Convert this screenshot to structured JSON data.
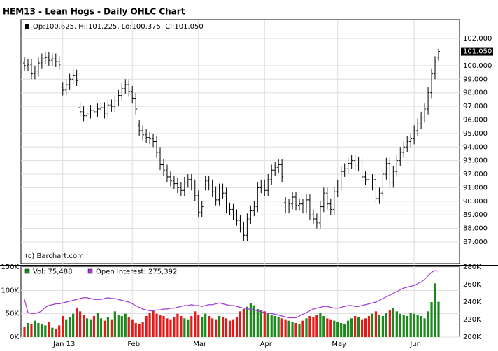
{
  "chart_data": [
    {
      "type": "ohlc",
      "title": "HEM13 - Lean Hogs - Daily OHLC Chart",
      "legend_text": "Op:100.625, Hi:101.225, Lo:100.375, Cl:101.050",
      "watermark": "(c) Barchart.com",
      "last_price_label": "101.050",
      "color": "#000000",
      "grid": true,
      "categories": [
        null,
        null,
        null,
        null,
        null,
        null,
        null,
        null,
        null,
        null,
        null,
        "Jan 13",
        null,
        null,
        null,
        null,
        null,
        null,
        null,
        null,
        null,
        null,
        null,
        null,
        null,
        null,
        null,
        null,
        null,
        null,
        null,
        "Feb",
        null,
        null,
        null,
        null,
        null,
        null,
        null,
        null,
        null,
        null,
        null,
        null,
        null,
        null,
        null,
        null,
        null,
        null,
        "Mar",
        null,
        null,
        null,
        null,
        null,
        null,
        null,
        null,
        null,
        null,
        null,
        null,
        null,
        null,
        null,
        null,
        null,
        null,
        "Apr",
        null,
        null,
        null,
        null,
        null,
        null,
        null,
        null,
        null,
        null,
        null,
        null,
        null,
        null,
        null,
        null,
        null,
        null,
        null,
        null,
        "May",
        null,
        null,
        null,
        null,
        null,
        null,
        null,
        null,
        null,
        null,
        null,
        null,
        null,
        null,
        null,
        null,
        null,
        null,
        null,
        null,
        null,
        "Jun",
        null,
        null,
        null,
        null,
        null,
        null,
        null
      ],
      "open": [
        100.2,
        100.0,
        100.1,
        99.4,
        99.6,
        100.2,
        100.5,
        100.6,
        100.4,
        100.5,
        100.3,
        98.4,
        98.2,
        98.6,
        99.0,
        99.3,
        96.9,
        96.6,
        96.3,
        96.5,
        96.7,
        96.6,
        96.8,
        96.9,
        96.5,
        97.1,
        97.0,
        97.4,
        97.8,
        98.3,
        98.6,
        98.1,
        97.6,
        95.6,
        95.2,
        94.9,
        94.7,
        94.6,
        94.4,
        93.6,
        92.7,
        92.3,
        91.8,
        91.5,
        91.3,
        91.0,
        90.8,
        91.4,
        91.6,
        91.2,
        90.4,
        89.2,
        91.2,
        91.5,
        91.2,
        90.7,
        90.1,
        90.9,
        90.6,
        89.5,
        89.4,
        89.0,
        88.6,
        88.1,
        87.5,
        88.7,
        89.3,
        89.6,
        91.0,
        91.2,
        90.8,
        91.6,
        92.3,
        92.5,
        92.7,
        89.9,
        89.5,
        89.8,
        90.3,
        89.7,
        89.8,
        89.5,
        90.1,
        89.0,
        88.7,
        88.4,
        89.6,
        90.6,
        89.8,
        89.4,
        90.7,
        91.2,
        92.2,
        92.4,
        92.8,
        93.0,
        92.6,
        92.9,
        91.8,
        91.6,
        91.2,
        91.6,
        90.2,
        90.6,
        92.0,
        92.8,
        91.4,
        92.2,
        93.0,
        93.6,
        94.0,
        94.4,
        94.6,
        95.2,
        95.7,
        96.2,
        96.8,
        98.0,
        99.4,
        100.625
      ],
      "high": [
        100.6,
        100.5,
        100.5,
        100.0,
        100.6,
        100.9,
        101.0,
        101.0,
        100.9,
        100.9,
        100.7,
        98.8,
        99.0,
        99.4,
        99.7,
        99.7,
        97.3,
        97.0,
        96.9,
        97.1,
        97.1,
        97.2,
        97.3,
        97.3,
        97.5,
        97.5,
        97.8,
        98.2,
        98.7,
        99.0,
        99.0,
        98.5,
        98.0,
        96.0,
        95.6,
        95.3,
        95.1,
        95.0,
        94.8,
        94.0,
        93.1,
        92.7,
        92.2,
        91.9,
        91.7,
        91.4,
        91.8,
        92.0,
        92.0,
        91.6,
        90.8,
        90.0,
        91.9,
        91.9,
        91.6,
        91.1,
        91.3,
        91.3,
        91.0,
        89.9,
        89.8,
        89.4,
        89.0,
        88.5,
        89.1,
        89.7,
        90.0,
        91.4,
        91.6,
        91.6,
        92.0,
        92.7,
        92.9,
        93.1,
        93.1,
        90.3,
        90.2,
        90.7,
        90.7,
        90.2,
        90.2,
        90.5,
        90.5,
        89.4,
        89.1,
        90.0,
        91.0,
        91.0,
        90.2,
        91.1,
        91.6,
        92.6,
        92.8,
        93.2,
        93.4,
        93.4,
        93.3,
        93.3,
        92.2,
        92.0,
        92.0,
        92.0,
        91.0,
        92.4,
        93.2,
        93.2,
        92.6,
        93.4,
        94.0,
        94.4,
        94.8,
        95.0,
        95.6,
        96.1,
        96.6,
        97.2,
        98.4,
        99.8,
        100.7,
        101.225
      ],
      "low": [
        99.6,
        99.6,
        99.0,
        99.0,
        99.2,
        99.8,
        100.1,
        100.0,
        100.0,
        99.9,
        99.7,
        97.8,
        97.8,
        98.2,
        98.6,
        98.5,
        96.2,
        95.9,
        95.9,
        96.1,
        96.2,
        96.2,
        96.4,
        96.1,
        96.1,
        96.6,
        96.6,
        97.0,
        97.4,
        97.9,
        97.7,
        97.2,
        96.4,
        94.8,
        94.5,
        94.3,
        94.2,
        94.0,
        93.2,
        92.3,
        91.9,
        91.4,
        91.1,
        90.9,
        90.6,
        90.4,
        90.4,
        91.0,
        90.8,
        90.0,
        88.8,
        88.8,
        90.8,
        90.8,
        90.3,
        89.7,
        89.7,
        90.2,
        89.1,
        89.0,
        88.6,
        88.2,
        87.7,
        87.1,
        87.1,
        88.3,
        88.9,
        89.2,
        90.6,
        90.4,
        90.4,
        91.2,
        91.9,
        92.1,
        91.4,
        89.1,
        89.1,
        89.4,
        89.3,
        89.3,
        89.1,
        89.1,
        88.6,
        88.3,
        88.0,
        88.0,
        89.2,
        89.4,
        89.0,
        89.0,
        90.3,
        90.8,
        91.8,
        92.0,
        92.4,
        92.2,
        92.2,
        91.4,
        91.2,
        90.8,
        90.8,
        89.8,
        89.8,
        90.2,
        91.6,
        91.0,
        91.0,
        91.8,
        92.6,
        93.2,
        93.6,
        94.0,
        94.2,
        94.8,
        95.3,
        95.8,
        96.4,
        97.6,
        99.0,
        100.375
      ],
      "close": [
        100.0,
        100.1,
        99.4,
        99.6,
        100.2,
        100.5,
        100.6,
        100.4,
        100.5,
        100.3,
        100.1,
        98.2,
        98.6,
        99.0,
        99.3,
        98.9,
        96.6,
        96.3,
        96.5,
        96.7,
        96.6,
        96.8,
        96.9,
        96.5,
        97.1,
        97.0,
        97.4,
        97.8,
        98.3,
        98.6,
        98.1,
        97.6,
        96.8,
        95.2,
        94.9,
        94.7,
        94.6,
        94.4,
        93.6,
        92.7,
        92.3,
        91.8,
        91.5,
        91.3,
        91.0,
        90.8,
        91.4,
        91.6,
        91.2,
        90.4,
        89.2,
        89.6,
        91.5,
        91.2,
        90.7,
        90.1,
        90.9,
        90.6,
        89.5,
        89.4,
        89.0,
        88.6,
        88.1,
        87.5,
        88.7,
        89.3,
        89.6,
        91.0,
        91.2,
        90.8,
        91.6,
        92.3,
        92.5,
        92.7,
        91.8,
        89.5,
        89.8,
        90.3,
        89.7,
        89.8,
        89.5,
        90.1,
        89.0,
        88.7,
        88.4,
        89.6,
        90.6,
        89.8,
        89.4,
        90.7,
        91.2,
        92.2,
        92.4,
        92.8,
        93.0,
        92.6,
        92.9,
        91.8,
        91.6,
        91.2,
        91.6,
        90.2,
        90.6,
        92.0,
        92.8,
        91.4,
        92.2,
        93.0,
        93.6,
        94.0,
        94.4,
        94.6,
        95.2,
        95.7,
        96.2,
        96.8,
        98.0,
        99.4,
        100.3,
        101.05
      ],
      "ylim": [
        85.4,
        103.4
      ],
      "yticks": [
        {
          "value": 87,
          "label": "87.000"
        },
        {
          "value": 88,
          "label": "88.000"
        },
        {
          "value": 89,
          "label": "89.000"
        },
        {
          "value": 90,
          "label": "90.000"
        },
        {
          "value": 91,
          "label": "91.000"
        },
        {
          "value": 92,
          "label": "92.000"
        },
        {
          "value": 93,
          "label": "93.000"
        },
        {
          "value": 94,
          "label": "94.000"
        },
        {
          "value": 95,
          "label": "95.000"
        },
        {
          "value": 96,
          "label": "96.000"
        },
        {
          "value": 97,
          "label": "97.000"
        },
        {
          "value": 98,
          "label": "98.000"
        },
        {
          "value": 99,
          "label": "99.000"
        },
        {
          "value": 100,
          "label": "100.000"
        },
        {
          "value": 101,
          "label": "101.000"
        },
        {
          "value": 102,
          "label": "102.000"
        }
      ]
    },
    {
      "type": "volume",
      "grid": true,
      "series": [
        {
          "name": "Vol: 75,488",
          "color": "#1a8a1a",
          "up_color": "#1a8a1a",
          "down_color": "#e31a1a",
          "values": [
            22000,
            30000,
            28000,
            35000,
            30000,
            28000,
            25000,
            32000,
            20000,
            18000,
            25000,
            45000,
            38000,
            42000,
            50000,
            62000,
            55000,
            48000,
            40000,
            38000,
            45000,
            52000,
            40000,
            35000,
            42000,
            38000,
            55000,
            48000,
            45000,
            50000,
            42000,
            38000,
            30000,
            28000,
            32000,
            45000,
            52000,
            58000,
            50000,
            48000,
            45000,
            40000,
            38000,
            42000,
            50000,
            45000,
            40000,
            38000,
            45000,
            55000,
            48000,
            42000,
            50000,
            45000,
            40000,
            38000,
            45000,
            42000,
            40000,
            35000,
            38000,
            42000,
            55000,
            60000,
            65000,
            72000,
            68000,
            60000,
            58000,
            55000,
            50000,
            48000,
            45000,
            42000,
            40000,
            38000,
            35000,
            32000,
            30000,
            28000,
            35000,
            40000,
            45000,
            42000,
            48000,
            52000,
            45000,
            40000,
            38000,
            35000,
            32000,
            30000,
            28000,
            35000,
            40000,
            45000,
            42000,
            38000,
            40000,
            45000,
            50000,
            55000,
            48000,
            45000,
            52000,
            58000,
            62000,
            55000,
            50000,
            48000,
            45000,
            52000,
            50000,
            48000,
            45000,
            40000,
            55000,
            75000,
            115000,
            75488
          ]
        },
        {
          "name": "Open Interest: 275,392",
          "color": "#a23bd6",
          "axis": "y2",
          "values": [
            243000,
            228000,
            227000,
            227000,
            228000,
            230000,
            234000,
            236000,
            237000,
            238000,
            238000,
            239000,
            240000,
            241000,
            242000,
            243000,
            244000,
            245000,
            245000,
            244000,
            243000,
            243000,
            243000,
            244000,
            245000,
            244000,
            244000,
            243000,
            242000,
            241000,
            240000,
            238000,
            236000,
            234000,
            232000,
            231000,
            230000,
            230000,
            231000,
            231000,
            232000,
            232000,
            233000,
            233000,
            234000,
            235000,
            236000,
            236000,
            237000,
            236000,
            236000,
            235000,
            236000,
            237000,
            237000,
            238000,
            239000,
            238000,
            237000,
            236000,
            236000,
            235000,
            234000,
            233000,
            232000,
            232000,
            231000,
            230000,
            229000,
            228000,
            227000,
            227000,
            226000,
            225000,
            224000,
            223000,
            222000,
            222000,
            222000,
            224000,
            226000,
            228000,
            230000,
            232000,
            233000,
            234000,
            235000,
            235000,
            234000,
            233000,
            233000,
            234000,
            235000,
            236000,
            236000,
            235000,
            235000,
            236000,
            237000,
            238000,
            239000,
            240000,
            242000,
            244000,
            246000,
            248000,
            250000,
            252000,
            254000,
            256000,
            257000,
            258000,
            259000,
            261000,
            263000,
            266000,
            270000,
            274000,
            276000,
            275392
          ]
        }
      ],
      "ylim": [
        0,
        150000
      ],
      "yticks": [
        {
          "value": 0,
          "label": "0K"
        },
        {
          "value": 50000,
          "label": "50K"
        },
        {
          "value": 100000,
          "label": "100K"
        },
        {
          "value": 150000,
          "label": "150K"
        }
      ],
      "y2lim": [
        200000,
        280000
      ],
      "y2ticks": [
        {
          "value": 200000,
          "label": "200K"
        },
        {
          "value": 220000,
          "label": "220K"
        },
        {
          "value": 240000,
          "label": "240K"
        },
        {
          "value": 260000,
          "label": "260K"
        },
        {
          "value": 280000,
          "label": "280K"
        }
      ]
    }
  ]
}
